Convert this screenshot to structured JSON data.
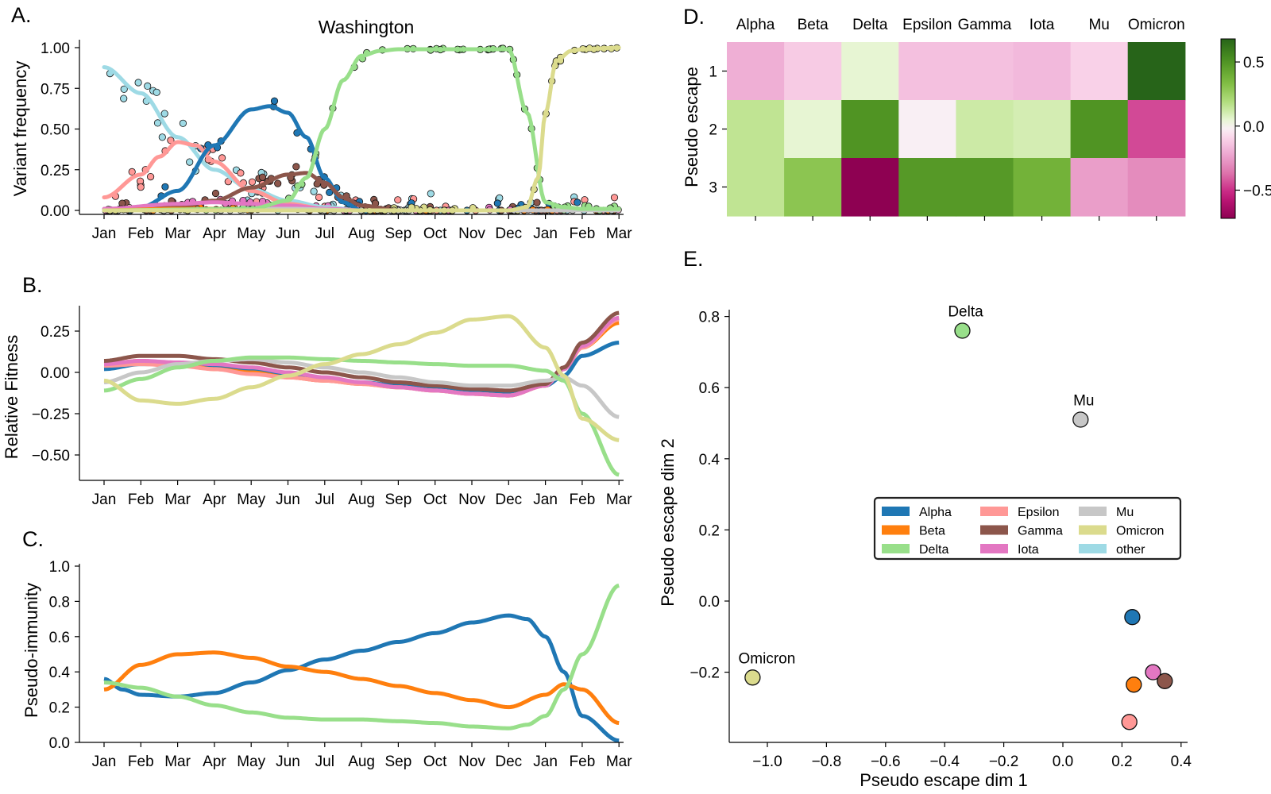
{
  "months": [
    "Jan",
    "Feb",
    "Mar",
    "Apr",
    "May",
    "Jun",
    "Jul",
    "Aug",
    "Sep",
    "Oct",
    "Nov",
    "Dec",
    "Jan",
    "Feb",
    "Mar"
  ],
  "colors": {
    "Alpha": "#1f77b4",
    "Beta": "#ff7f0e",
    "Delta": "#98df8a",
    "Epsilon": "#ff9896",
    "Gamma": "#8c564b",
    "Iota": "#e377c2",
    "Mu": "#c7c7c7",
    "Omicron": "#dbdb8d",
    "other": "#9edae5"
  },
  "panels": {
    "A": {
      "letter": "A.",
      "title": "Washington",
      "ylabel": "Variant frequency",
      "yticks": [
        "0.00",
        "0.25",
        "0.50",
        "0.75",
        "1.00"
      ]
    },
    "B": {
      "letter": "B.",
      "ylabel": "Relative Fitness",
      "yticks": [
        "−0.50",
        "−0.25",
        "0.00",
        "0.25"
      ]
    },
    "C": {
      "letter": "C.",
      "ylabel": "Pseudo-immunity",
      "yticks": [
        "0.0",
        "0.2",
        "0.4",
        "0.6",
        "0.8",
        "1.0"
      ]
    },
    "D": {
      "letter": "D.",
      "ylabel": "Pseudo escape",
      "rows": [
        "1",
        "2",
        "3"
      ],
      "cbar_ticks": [
        "0.5",
        "0.0",
        "−0.5"
      ]
    },
    "E": {
      "letter": "E.",
      "xlabel": "Pseudo escape dim 1",
      "ylabel": "Pseudo escape dim 2",
      "xticks": [
        "−1.0",
        "−0.8",
        "−0.6",
        "−0.4",
        "−0.2",
        "0.0",
        "0.2",
        "0.4"
      ],
      "yticks": [
        "−0.2",
        "0.0",
        "0.2",
        "0.4",
        "0.6",
        "0.8"
      ]
    }
  },
  "chart_data": [
    {
      "panel": "A",
      "type": "line",
      "title": "Washington",
      "xlabel": "",
      "ylabel": "Variant frequency",
      "ylim": [
        0,
        1
      ],
      "x_unit": "months from Jan 2021",
      "series": [
        {
          "name": "other",
          "x": [
            0,
            1,
            2,
            3,
            4,
            5,
            6,
            7,
            14
          ],
          "y": [
            0.88,
            0.72,
            0.45,
            0.25,
            0.13,
            0.06,
            0.02,
            0.0,
            0.0
          ]
        },
        {
          "name": "Epsilon",
          "x": [
            0,
            1,
            1.5,
            2,
            2.5,
            3,
            4,
            5,
            6,
            7,
            14
          ],
          "y": [
            0.08,
            0.22,
            0.33,
            0.42,
            0.4,
            0.3,
            0.12,
            0.04,
            0.01,
            0.0,
            0.0
          ]
        },
        {
          "name": "Alpha",
          "x": [
            0,
            1,
            2,
            3,
            4,
            4.5,
            5,
            5.5,
            6,
            6.5,
            7,
            14
          ],
          "y": [
            0.0,
            0.02,
            0.12,
            0.4,
            0.62,
            0.64,
            0.6,
            0.45,
            0.2,
            0.05,
            0.0,
            0.0
          ]
        },
        {
          "name": "Gamma",
          "x": [
            0,
            2,
            3,
            4,
            5,
            5.5,
            6,
            6.5,
            7,
            8,
            14
          ],
          "y": [
            0.0,
            0.02,
            0.06,
            0.14,
            0.22,
            0.23,
            0.17,
            0.08,
            0.03,
            0.0,
            0.0
          ]
        },
        {
          "name": "Iota",
          "x": [
            0,
            2,
            3,
            4,
            5,
            6,
            7,
            14
          ],
          "y": [
            0.01,
            0.04,
            0.05,
            0.04,
            0.03,
            0.01,
            0.0,
            0.0
          ]
        },
        {
          "name": "Beta",
          "x": [
            0,
            2,
            4,
            6,
            14
          ],
          "y": [
            0.0,
            0.01,
            0.01,
            0.0,
            0.0
          ]
        },
        {
          "name": "Mu",
          "x": [
            0,
            3,
            5,
            7,
            14
          ],
          "y": [
            0.0,
            0.005,
            0.01,
            0.0,
            0.0
          ]
        },
        {
          "name": "Delta",
          "x": [
            0,
            4,
            5,
            5.5,
            6,
            6.5,
            7,
            7.5,
            8,
            11,
            11.5,
            12,
            12.5,
            13,
            14
          ],
          "y": [
            0.0,
            0.01,
            0.06,
            0.2,
            0.5,
            0.8,
            0.95,
            0.98,
            0.99,
            0.99,
            0.6,
            0.05,
            0.02,
            0.01,
            0.01
          ]
        },
        {
          "name": "Omicron",
          "x": [
            0,
            11,
            11.5,
            11.8,
            12,
            12.3,
            12.7,
            13,
            14
          ],
          "y": [
            0.0,
            0.0,
            0.02,
            0.2,
            0.6,
            0.92,
            0.98,
            0.99,
            1.0
          ]
        }
      ]
    },
    {
      "panel": "B",
      "type": "line",
      "xlabel": "",
      "ylabel": "Relative Fitness",
      "ylim": [
        -0.65,
        0.4
      ],
      "x_unit": "months from Jan 2021",
      "series": [
        {
          "name": "Alpha",
          "x": [
            0,
            1,
            2,
            3,
            4,
            5,
            6,
            7,
            8,
            9,
            10,
            11,
            12,
            12.5,
            13,
            14
          ],
          "y": [
            0.02,
            0.05,
            0.05,
            0.03,
            0.01,
            -0.02,
            -0.04,
            -0.06,
            -0.08,
            -0.1,
            -0.12,
            -0.13,
            -0.08,
            -0.02,
            0.1,
            0.18
          ]
        },
        {
          "name": "Beta",
          "x": [
            0,
            1,
            2,
            3,
            4,
            5,
            6,
            7,
            8,
            9,
            10,
            11,
            12,
            12.5,
            13,
            14
          ],
          "y": [
            0.05,
            0.07,
            0.05,
            0.02,
            0.0,
            -0.03,
            -0.05,
            -0.07,
            -0.09,
            -0.11,
            -0.13,
            -0.14,
            -0.08,
            0.02,
            0.15,
            0.3
          ]
        },
        {
          "name": "Epsilon",
          "x": [
            0,
            1,
            2,
            3,
            4,
            5,
            6,
            7,
            8,
            9,
            10,
            11,
            12,
            12.5,
            13,
            14
          ],
          "y": [
            0.04,
            0.05,
            0.04,
            0.02,
            -0.01,
            -0.03,
            -0.05,
            -0.07,
            -0.09,
            -0.11,
            -0.13,
            -0.14,
            -0.08,
            0.02,
            0.15,
            0.32
          ]
        },
        {
          "name": "Iota",
          "x": [
            0,
            1,
            2,
            3,
            4,
            5,
            6,
            7,
            8,
            9,
            10,
            11,
            12,
            12.5,
            13,
            14
          ],
          "y": [
            0.05,
            0.07,
            0.06,
            0.05,
            0.03,
            0.0,
            -0.03,
            -0.06,
            -0.09,
            -0.11,
            -0.13,
            -0.14,
            -0.08,
            0.02,
            0.16,
            0.33
          ]
        },
        {
          "name": "Gamma",
          "x": [
            0,
            1,
            2,
            3,
            4,
            5,
            6,
            7,
            8,
            9,
            10,
            11,
            12,
            12.5,
            13,
            14
          ],
          "y": [
            0.07,
            0.1,
            0.1,
            0.08,
            0.06,
            0.03,
            0.0,
            -0.03,
            -0.06,
            -0.08,
            -0.1,
            -0.11,
            -0.07,
            0.03,
            0.18,
            0.36
          ]
        },
        {
          "name": "Mu",
          "x": [
            0,
            1,
            2,
            3,
            4,
            5,
            6,
            7,
            8,
            9,
            10,
            11,
            12,
            12.5,
            13,
            14
          ],
          "y": [
            -0.06,
            0.0,
            0.05,
            0.07,
            0.08,
            0.06,
            0.03,
            0.0,
            -0.03,
            -0.06,
            -0.08,
            -0.08,
            -0.05,
            -0.03,
            -0.08,
            -0.27
          ]
        },
        {
          "name": "Delta",
          "x": [
            0,
            1,
            2,
            3,
            4,
            5,
            6,
            7,
            8,
            9,
            10,
            11,
            12,
            12.5,
            13,
            14
          ],
          "y": [
            -0.11,
            -0.04,
            0.03,
            0.07,
            0.09,
            0.09,
            0.08,
            0.07,
            0.06,
            0.05,
            0.04,
            0.04,
            0.01,
            -0.05,
            -0.25,
            -0.62
          ]
        },
        {
          "name": "Omicron",
          "x": [
            0,
            1,
            2,
            3,
            4,
            5,
            6,
            7,
            8,
            9,
            10,
            11,
            12,
            12.5,
            13,
            14
          ],
          "y": [
            -0.05,
            -0.17,
            -0.19,
            -0.16,
            -0.09,
            -0.02,
            0.05,
            0.11,
            0.17,
            0.24,
            0.32,
            0.34,
            0.15,
            -0.02,
            -0.28,
            -0.41
          ]
        }
      ]
    },
    {
      "panel": "C",
      "type": "line",
      "xlabel": "",
      "ylabel": "Pseudo-immunity",
      "ylim": [
        0,
        1
      ],
      "x_unit": "months from Jan 2021",
      "series": [
        {
          "name": "Alpha",
          "x": [
            0,
            0.5,
            1,
            2,
            3,
            4,
            5,
            6,
            7,
            8,
            9,
            10,
            11,
            11.5,
            12,
            12.5,
            13,
            14
          ],
          "y": [
            0.36,
            0.3,
            0.27,
            0.26,
            0.28,
            0.34,
            0.41,
            0.47,
            0.52,
            0.57,
            0.62,
            0.68,
            0.72,
            0.7,
            0.6,
            0.4,
            0.15,
            0.01
          ]
        },
        {
          "name": "Beta",
          "x": [
            0,
            1,
            2,
            3,
            4,
            5,
            6,
            7,
            8,
            9,
            10,
            11,
            12,
            12.5,
            13,
            14
          ],
          "y": [
            0.3,
            0.44,
            0.5,
            0.51,
            0.48,
            0.43,
            0.4,
            0.36,
            0.32,
            0.28,
            0.24,
            0.2,
            0.27,
            0.33,
            0.3,
            0.11
          ]
        },
        {
          "name": "Delta",
          "x": [
            0,
            1,
            2,
            3,
            4,
            5,
            6,
            7,
            8,
            9,
            10,
            11,
            11.5,
            12,
            12.5,
            13,
            14
          ],
          "y": [
            0.34,
            0.31,
            0.26,
            0.21,
            0.17,
            0.14,
            0.13,
            0.13,
            0.12,
            0.11,
            0.09,
            0.08,
            0.1,
            0.15,
            0.3,
            0.5,
            0.89
          ]
        }
      ]
    },
    {
      "panel": "D",
      "type": "heatmap",
      "ylabel": "Pseudo escape",
      "vrange": [
        -0.72,
        0.68
      ],
      "columns": [
        "Alpha",
        "Beta",
        "Delta",
        "Epsilon",
        "Gamma",
        "Iota",
        "Mu",
        "Omicron"
      ],
      "rows": [
        "1",
        "2",
        "3"
      ],
      "values": [
        [
          -0.2,
          -0.12,
          0.05,
          -0.15,
          -0.15,
          -0.17,
          -0.1,
          0.68
        ],
        [
          0.15,
          0.05,
          0.5,
          -0.02,
          0.12,
          0.1,
          0.5,
          -0.45
        ],
        [
          0.15,
          0.3,
          -0.72,
          0.48,
          0.48,
          0.38,
          -0.25,
          -0.3
        ]
      ]
    },
    {
      "panel": "E",
      "type": "scatter",
      "xlabel": "Pseudo escape dim 1",
      "ylabel": "Pseudo escape dim 2",
      "xlim": [
        -1.1,
        0.42
      ],
      "ylim": [
        -0.4,
        0.82
      ],
      "points": [
        {
          "name": "Delta",
          "x": -0.34,
          "y": 0.76,
          "label": "Delta"
        },
        {
          "name": "Mu",
          "x": 0.06,
          "y": 0.51,
          "label": "Mu"
        },
        {
          "name": "Omicron",
          "x": -1.05,
          "y": -0.215,
          "label": "Omicron"
        },
        {
          "name": "Alpha",
          "x": 0.235,
          "y": -0.045,
          "label": ""
        },
        {
          "name": "Iota",
          "x": 0.305,
          "y": -0.2,
          "label": ""
        },
        {
          "name": "Gamma",
          "x": 0.345,
          "y": -0.225,
          "label": ""
        },
        {
          "name": "Beta",
          "x": 0.24,
          "y": -0.235,
          "label": ""
        },
        {
          "name": "Epsilon",
          "x": 0.225,
          "y": -0.34,
          "label": ""
        }
      ],
      "legend": {
        "placement": "center-right",
        "entries": [
          "Alpha",
          "Epsilon",
          "Mu",
          "Beta",
          "Gamma",
          "Omicron",
          "Delta",
          "Iota",
          "other"
        ]
      }
    }
  ]
}
